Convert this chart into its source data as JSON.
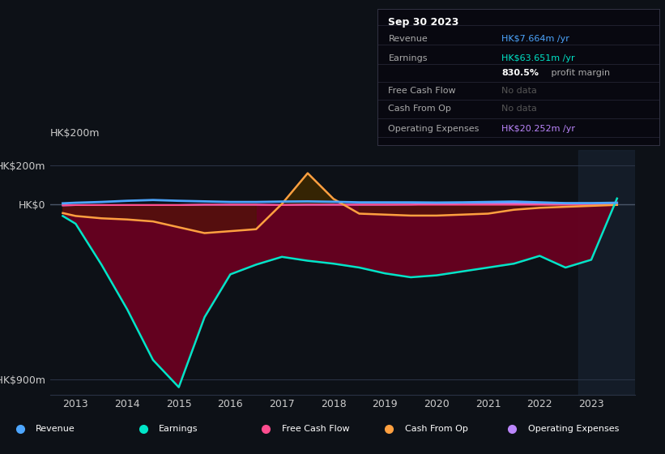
{
  "bg_color": "#0d1117",
  "plot_bg_color": "#0d1117",
  "yticks_labels": [
    "HK$200m",
    "HK$0",
    "-HK$900m"
  ],
  "yticks_values": [
    200,
    0,
    -900
  ],
  "xticks": [
    2013,
    2014,
    2015,
    2016,
    2017,
    2018,
    2019,
    2020,
    2021,
    2022,
    2023
  ],
  "xlim": [
    2012.5,
    2023.85
  ],
  "ylim": [
    -980,
    280
  ],
  "fill_color_earnings": "#6b0020",
  "fill_color_cfo_pos": "#3d2800",
  "fill_color_cfo_neg": "#4a1a00",
  "shade_right_color": "#1a2535",
  "grid_color": "#2a3345",
  "text_color": "#cccccc",
  "label_color": "#888888",
  "shade_x_start": 2022.75,
  "revenue_color": "#4da6ff",
  "earnings_color": "#00e5c8",
  "fcf_color": "#ff4d8f",
  "cfo_color": "#ffa040",
  "ope_color": "#bb86fc",
  "rev_x": [
    2012.75,
    2013.0,
    2013.5,
    2014.0,
    2014.5,
    2015.0,
    2015.5,
    2016.0,
    2016.5,
    2017.0,
    2017.5,
    2018.0,
    2018.5,
    2019.0,
    2019.5,
    2020.0,
    2020.5,
    2021.0,
    2021.5,
    2022.0,
    2022.5,
    2023.0,
    2023.5
  ],
  "rev_y": [
    5,
    8,
    12,
    18,
    22,
    18,
    15,
    12,
    12,
    14,
    15,
    13,
    10,
    10,
    10,
    9,
    10,
    12,
    14,
    10,
    6,
    6,
    8
  ],
  "ear_y": [
    -60,
    -100,
    -310,
    -540,
    -800,
    -940,
    -580,
    -360,
    -310,
    -270,
    -290,
    -305,
    -325,
    -355,
    -375,
    -365,
    -345,
    -325,
    -305,
    -265,
    -325,
    -285,
    30
  ],
  "cfo_y": [
    -45,
    -60,
    -72,
    -78,
    -88,
    -118,
    -148,
    -138,
    -128,
    2,
    160,
    28,
    -48,
    -53,
    -58,
    -58,
    -53,
    -48,
    -28,
    -18,
    -13,
    -8,
    -3
  ],
  "fcf_y": [
    -5,
    -4,
    -4,
    -4,
    -4,
    -4,
    -2,
    -2,
    -2,
    -4,
    -2,
    -2,
    -2,
    -2,
    -2,
    -2,
    -2,
    -2,
    -2,
    -2,
    -2,
    -2,
    -2
  ],
  "ope_y": [
    -6,
    -4,
    -4,
    -4,
    -4,
    -4,
    -2,
    -2,
    -2,
    -3,
    -2,
    -2,
    -2,
    -2,
    -1,
    3,
    5,
    5,
    5,
    4,
    5,
    5,
    5
  ],
  "box_date": "Sep 30 2023",
  "box_rows": [
    {
      "label": "Revenue",
      "value": "HK$7.664m /yr",
      "value_color": "#4da6ff",
      "no_data": false
    },
    {
      "label": "Earnings",
      "value": "HK$63.651m /yr",
      "value_color": "#00e5c8",
      "no_data": false
    },
    {
      "label": "",
      "value": "830.5% profit margin",
      "value_color": "#ffffff",
      "no_data": false,
      "bold_pct": true
    },
    {
      "label": "Free Cash Flow",
      "value": "No data",
      "value_color": "#555555",
      "no_data": true
    },
    {
      "label": "Cash From Op",
      "value": "No data",
      "value_color": "#555555",
      "no_data": true
    },
    {
      "label": "Operating Expenses",
      "value": "HK$20.252m /yr",
      "value_color": "#bb86fc",
      "no_data": false
    }
  ],
  "legend_items": [
    {
      "label": "Revenue",
      "color": "#4da6ff"
    },
    {
      "label": "Earnings",
      "color": "#00e5c8"
    },
    {
      "label": "Free Cash Flow",
      "color": "#ff4d8f"
    },
    {
      "label": "Cash From Op",
      "color": "#ffa040"
    },
    {
      "label": "Operating Expenses",
      "color": "#bb86fc"
    }
  ]
}
